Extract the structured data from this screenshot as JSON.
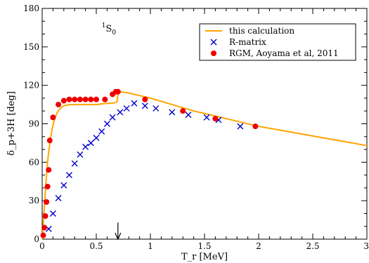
{
  "chart_data": {
    "type": "line",
    "title": "",
    "xlabel": "T_r [MeV]",
    "ylabel": "δ_p+3H [deg]",
    "xlim": [
      0,
      3
    ],
    "ylim": [
      0,
      180
    ],
    "x_ticks": [
      {
        "value": 0,
        "label": "0"
      },
      {
        "value": 0.5,
        "label": "0.5"
      },
      {
        "value": 1,
        "label": "1"
      },
      {
        "value": 1.5,
        "label": "1.5"
      },
      {
        "value": 2,
        "label": "2"
      },
      {
        "value": 2.5,
        "label": "2.5"
      },
      {
        "value": 3,
        "label": "3"
      }
    ],
    "y_ticks": [
      {
        "value": 0,
        "label": "0"
      },
      {
        "value": 30,
        "label": "30"
      },
      {
        "value": 60,
        "label": "60"
      },
      {
        "value": 90,
        "label": "90"
      },
      {
        "value": 120,
        "label": "120"
      },
      {
        "value": 150,
        "label": "150"
      },
      {
        "value": 180,
        "label": "180"
      }
    ],
    "x_minor_step": 0.1,
    "y_minor_step": 10,
    "grid": false,
    "legend_position": "top-right",
    "annotation": {
      "text": "1S0",
      "sup": "1",
      "base": "S",
      "sub": "0",
      "x": 0.55,
      "y": 162
    },
    "arrow": {
      "x": 0.7,
      "y_from": 13,
      "y_to": 0
    },
    "series": [
      {
        "name": "this calculation",
        "kind": "line",
        "color": "#ffa500",
        "x": [
          0.0,
          0.005,
          0.01,
          0.02,
          0.03,
          0.04,
          0.05,
          0.06,
          0.07,
          0.08,
          0.09,
          0.1,
          0.12,
          0.14,
          0.16,
          0.18,
          0.2,
          0.25,
          0.3,
          0.4,
          0.5,
          0.6,
          0.65,
          0.69,
          0.7,
          0.72,
          0.8,
          0.9,
          1.0,
          1.2,
          1.4,
          1.6,
          1.8,
          2.0,
          2.2,
          2.4,
          2.6,
          2.8,
          3.0
        ],
        "y": [
          0,
          5,
          12,
          25,
          38,
          50,
          60,
          68,
          74,
          80,
          85,
          89,
          95,
          99,
          101,
          103,
          104,
          105,
          105,
          105,
          105,
          106,
          106,
          107,
          113,
          115,
          114,
          112,
          110,
          105,
          100,
          96,
          92,
          88,
          85,
          82,
          79,
          76,
          73
        ]
      },
      {
        "name": "R-matrix",
        "kind": "scatter",
        "marker": "x",
        "color": "#0000cc",
        "x": [
          0.06,
          0.1,
          0.15,
          0.2,
          0.25,
          0.3,
          0.35,
          0.4,
          0.45,
          0.5,
          0.55,
          0.6,
          0.65,
          0.72,
          0.78,
          0.85,
          0.95,
          1.05,
          1.2,
          1.35,
          1.52,
          1.63,
          1.83
        ],
        "y": [
          8,
          20,
          32,
          42,
          50,
          59,
          66,
          72,
          75,
          79,
          84,
          90,
          95,
          99,
          102,
          106,
          104,
          102,
          99,
          97,
          95,
          93,
          88
        ]
      },
      {
        "name": "RGM, Aoyama et al, 2011",
        "kind": "scatter",
        "marker": "circle",
        "color": "#ee0000",
        "x": [
          0.01,
          0.02,
          0.03,
          0.04,
          0.05,
          0.06,
          0.07,
          0.1,
          0.15,
          0.2,
          0.25,
          0.3,
          0.35,
          0.4,
          0.45,
          0.5,
          0.58,
          0.65,
          0.68,
          0.7,
          0.95,
          1.3,
          1.6,
          1.97
        ],
        "y": [
          3,
          9,
          18,
          29,
          41,
          54,
          77,
          95,
          105,
          108,
          109,
          109,
          109,
          109,
          109,
          109,
          109,
          113,
          115,
          115,
          109,
          100,
          94,
          88
        ]
      }
    ]
  }
}
